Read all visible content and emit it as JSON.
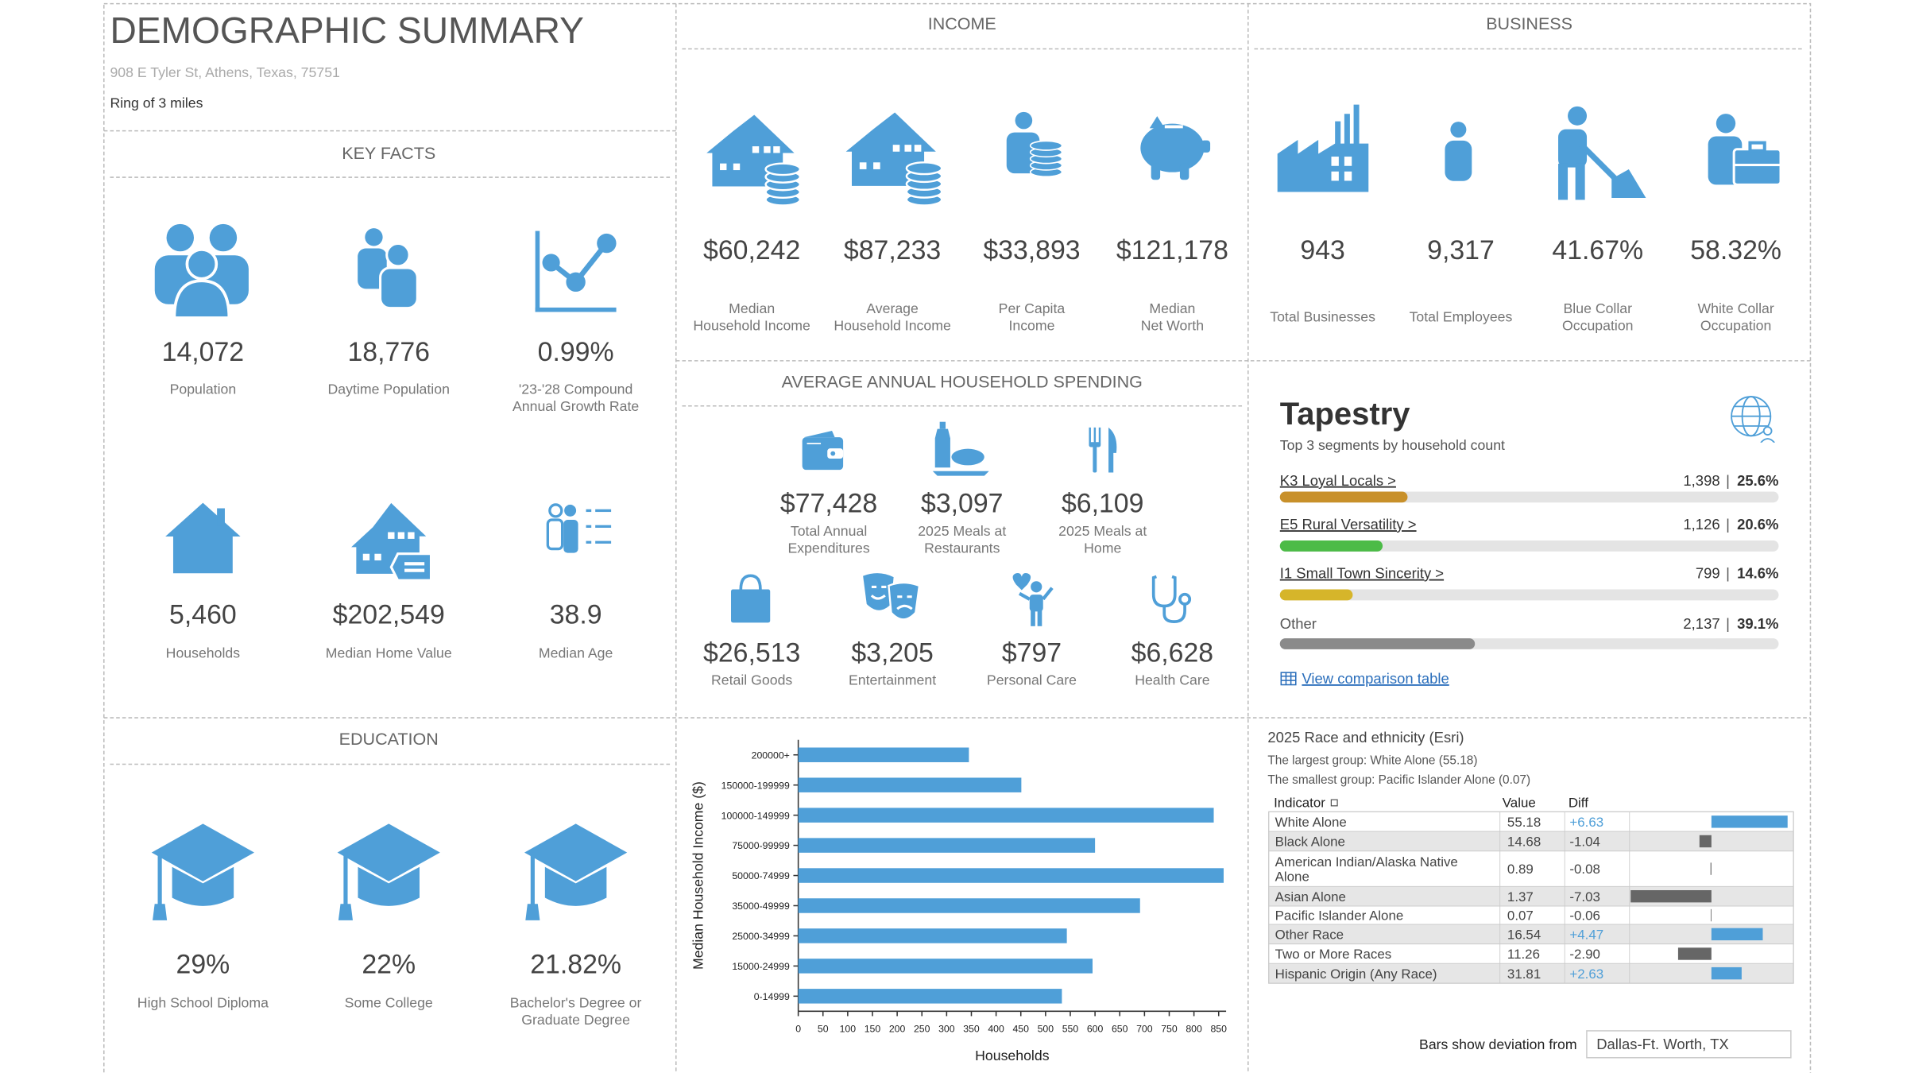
{
  "header": {
    "title": "DEMOGRAPHIC SUMMARY",
    "address": "908 E Tyler St, Athens, Texas, 75751",
    "ring": "Ring of 3 miles"
  },
  "key_facts": {
    "title": "KEY FACTS",
    "items": [
      {
        "value": "14,072",
        "label": [
          "Population"
        ]
      },
      {
        "value": "18,776",
        "label": [
          "Daytime Population"
        ]
      },
      {
        "value": "0.99%",
        "label": [
          "'23-'28 Compound",
          "Annual Growth Rate"
        ]
      },
      {
        "value": "5,460",
        "label": [
          "Households"
        ]
      },
      {
        "value": "$202,549",
        "label": [
          "Median Home Value"
        ]
      },
      {
        "value": "38.9",
        "label": [
          "Median Age"
        ]
      }
    ]
  },
  "income": {
    "title": "INCOME",
    "items": [
      {
        "value": "$60,242",
        "label": [
          "Median",
          "Household Income"
        ]
      },
      {
        "value": "$87,233",
        "label": [
          "Average",
          "Household Income"
        ]
      },
      {
        "value": "$33,893",
        "label": [
          "Per Capita",
          "Income"
        ]
      },
      {
        "value": "$121,178",
        "label": [
          "Median",
          "Net Worth"
        ]
      }
    ]
  },
  "business": {
    "title": "BUSINESS",
    "items": [
      {
        "value": "943",
        "label": [
          "Total Businesses"
        ]
      },
      {
        "value": "9,317",
        "label": [
          "Total Employees"
        ]
      },
      {
        "value": "41.67%",
        "label": [
          "Blue Collar",
          "Occupation"
        ]
      },
      {
        "value": "58.32%",
        "label": [
          "White Collar",
          "Occupation"
        ]
      }
    ]
  },
  "spending": {
    "title": "AVERAGE ANNUAL HOUSEHOLD SPENDING",
    "items": [
      {
        "value": "$77,428",
        "label": [
          "Total Annual",
          "Expenditures"
        ]
      },
      {
        "value": "$3,097",
        "label": [
          "2025 Meals at",
          "Restaurants"
        ]
      },
      {
        "value": "$6,109",
        "label": [
          "2025 Meals at",
          "Home"
        ]
      },
      {
        "value": "$26,513",
        "label": [
          "Retail Goods"
        ]
      },
      {
        "value": "$3,205",
        "label": [
          "Entertainment"
        ]
      },
      {
        "value": "$797",
        "label": [
          "Personal Care"
        ]
      },
      {
        "value": "$6,628",
        "label": [
          "Health Care"
        ]
      }
    ]
  },
  "education": {
    "title": "EDUCATION",
    "items": [
      {
        "value": "29%",
        "label": [
          "High School Diploma"
        ]
      },
      {
        "value": "22%",
        "label": [
          "Some College"
        ]
      },
      {
        "value": "21.82%",
        "label": [
          "Bachelor's Degree or",
          "Graduate Degree"
        ]
      }
    ]
  },
  "tapestry": {
    "title": "Tapestry",
    "subtitle": "Top 3 segments by household count",
    "segments": [
      {
        "name": "K3 Loyal Locals >",
        "count": "1,398",
        "percent": 25.6,
        "percent_label": "25.6%",
        "color": "#c8902a"
      },
      {
        "name": "E5 Rural Versatility >",
        "count": "1,126",
        "percent": 20.6,
        "percent_label": "20.6%",
        "color": "#4cbb47"
      },
      {
        "name": "I1 Small Town Sincerity >",
        "count": "799",
        "percent": 14.6,
        "percent_label": "14.6%",
        "color": "#d6b52a"
      },
      {
        "name": "Other",
        "count": "2,137",
        "percent": 39.1,
        "percent_label": "39.1%",
        "color": "#8a8a8a"
      }
    ],
    "link": "View comparison table"
  },
  "chart_data": {
    "type": "bar",
    "orientation": "horizontal",
    "color": "#4f9fd8",
    "y_label": "Median Household Income ($)",
    "x_label": "Households",
    "categories": [
      "200000+",
      "150000-199999",
      "100000-149999",
      "75000-99999",
      "50000-74999",
      "35000-49999",
      "25000-34999",
      "15000-24999",
      "0-14999"
    ],
    "values": [
      345,
      451,
      840,
      600,
      860,
      691,
      543,
      595,
      533
    ],
    "xlim": [
      0,
      865
    ],
    "xticks": [
      0,
      50,
      100,
      150,
      200,
      250,
      300,
      350,
      400,
      450,
      500,
      550,
      600,
      650,
      700,
      750,
      800,
      850
    ]
  },
  "race": {
    "title": "2025 Race and ethnicity (Esri)",
    "largest": "The largest group: White Alone (55.18)",
    "smallest": "The smallest group: Pacific Islander Alone (0.07)",
    "columns": [
      "Indicator",
      "Value",
      "Diff"
    ],
    "positive_color": "#4f9fd8",
    "negative_color": "#666666",
    "rows": [
      {
        "indicator": [
          "White Alone"
        ],
        "value": 55.18,
        "diff": 6.63,
        "diff_label": "+6.63"
      },
      {
        "indicator": [
          "Black Alone"
        ],
        "value": 14.68,
        "diff": -1.04,
        "diff_label": "-1.04"
      },
      {
        "indicator": [
          "American Indian/Alaska Native",
          "Alone"
        ],
        "value": 0.89,
        "diff": -0.08,
        "diff_label": "-0.08"
      },
      {
        "indicator": [
          "Asian Alone"
        ],
        "value": 1.37,
        "diff": -7.03,
        "diff_label": "-7.03"
      },
      {
        "indicator": [
          "Pacific Islander Alone"
        ],
        "value": 0.07,
        "diff": -0.06,
        "diff_label": "-0.06"
      },
      {
        "indicator": [
          "Other Race"
        ],
        "value": 16.54,
        "diff": 4.47,
        "diff_label": "+4.47"
      },
      {
        "indicator": [
          "Two or More Races"
        ],
        "value": 11.26,
        "diff": -2.9,
        "diff_label": "-2.90"
      },
      {
        "indicator": [
          "Hispanic Origin (Any Race)"
        ],
        "value": 31.81,
        "diff": 2.63,
        "diff_label": "+2.63"
      }
    ],
    "footer_label": "Bars show deviation from",
    "compare_to": "Dallas-Ft. Worth, TX"
  }
}
